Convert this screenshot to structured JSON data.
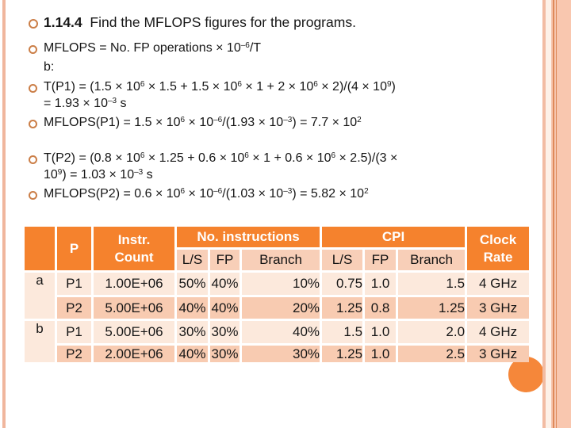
{
  "slide": {
    "colors": {
      "header_orange": "#F5822D",
      "subheader_pink": "#F8CFB8",
      "row_light": "#FCE9DC",
      "row_dark": "#F8CBB1",
      "bullet_ring": "#CB7E47",
      "corner_circle": "#F5873A",
      "border_salmon": "#F0B69D"
    }
  },
  "content": {
    "lines": [
      {
        "segments": [
          {
            "t": "1.14.4",
            "b": true
          },
          {
            "t": "  Find the MFLOPS figures for the programs."
          }
        ]
      },
      {
        "segments": [
          {
            "t": "MFLOPS = No. FP operations × 10"
          },
          {
            "t": "–6",
            "sup": true
          },
          {
            "t": "/T"
          }
        ]
      },
      {
        "segments": [
          {
            "t": "b:"
          }
        ]
      },
      {
        "segments": [
          {
            "t": "T(P1) = (1.5 × 10"
          },
          {
            "t": "6",
            "sup": true
          },
          {
            "t": " × 1.5 + 1.5 × 10"
          },
          {
            "t": "6",
            "sup": true
          },
          {
            "t": " × 1 + 2 × 10"
          },
          {
            "t": "6",
            "sup": true
          },
          {
            "t": " × 2)/(4 × 10"
          },
          {
            "t": "9",
            "sup": true
          },
          {
            "t": ")"
          }
        ]
      },
      {
        "segments": [
          {
            "t": "= 1.93 × 10"
          },
          {
            "t": "–3",
            "sup": true
          },
          {
            "t": " s"
          }
        ]
      },
      {
        "segments": [
          {
            "t": "MFLOPS(P1) = 1.5 × 10"
          },
          {
            "t": "6",
            "sup": true
          },
          {
            "t": " × 10"
          },
          {
            "t": "–6",
            "sup": true
          },
          {
            "t": "/(1.93 × 10"
          },
          {
            "t": "–3",
            "sup": true
          },
          {
            "t": ") = 7.7 × 10"
          },
          {
            "t": "2",
            "sup": true
          }
        ]
      },
      {
        "segments": [
          {
            "t": "T(P2) = (0.8 × 10"
          },
          {
            "t": "6",
            "sup": true
          },
          {
            "t": " × 1.25 + 0.6 × 10"
          },
          {
            "t": "6",
            "sup": true
          },
          {
            "t": " × 1 + 0.6 × 10"
          },
          {
            "t": "6",
            "sup": true
          },
          {
            "t": " × 2.5)/(3 ×"
          }
        ]
      },
      {
        "segments": [
          {
            "t": "10"
          },
          {
            "t": "9",
            "sup": true
          },
          {
            "t": ") = 1.03 × 10"
          },
          {
            "t": "–3",
            "sup": true
          },
          {
            "t": " s"
          }
        ]
      },
      {
        "segments": [
          {
            "t": "MFLOPS(P2) = 0.6 × 10"
          },
          {
            "t": "6",
            "sup": true
          },
          {
            "t": " × 10"
          },
          {
            "t": "–6",
            "sup": true
          },
          {
            "t": "/(1.03 × 10"
          },
          {
            "t": "–3",
            "sup": true
          },
          {
            "t": ") = 5.82 × 10"
          },
          {
            "t": "2",
            "sup": true
          }
        ]
      }
    ]
  },
  "table": {
    "header": {
      "p": "P",
      "instr_count": "Instr.\nCount",
      "no_instructions": "No. instructions",
      "cpi": "CPI",
      "clock_rate": "Clock\nRate",
      "sub": [
        "L/S",
        "FP",
        "Branch",
        "L/S",
        "FP",
        "Branch"
      ]
    },
    "rows": [
      {
        "group": "a",
        "p": "P1",
        "count": "1.00E+06",
        "ls": "50%",
        "fp": "40%",
        "branch": "10%",
        "cpi_ls": "0.75",
        "cpi_fp": "1.0",
        "cpi_branch": "1.5",
        "clock": "4 GHz"
      },
      {
        "group": "",
        "p": "P2",
        "count": "5.00E+06",
        "ls": "40%",
        "fp": "40%",
        "branch": "20%",
        "cpi_ls": "1.25",
        "cpi_fp": "0.8",
        "cpi_branch": "1.25",
        "clock": "3 GHz"
      },
      {
        "group": "b",
        "p": "P1",
        "count": "5.00E+06",
        "ls": "30%",
        "fp": "30%",
        "branch": "40%",
        "cpi_ls": "1.5",
        "cpi_fp": "1.0",
        "cpi_branch": "2.0",
        "clock": "4 GHz"
      },
      {
        "group": "",
        "p": "P2",
        "count": "2.00E+06",
        "ls": "40%",
        "fp": "30%",
        "branch": "30%",
        "cpi_ls": "1.25",
        "cpi_fp": "1.0",
        "cpi_branch": "2.5",
        "clock": "3 GHz"
      }
    ]
  }
}
